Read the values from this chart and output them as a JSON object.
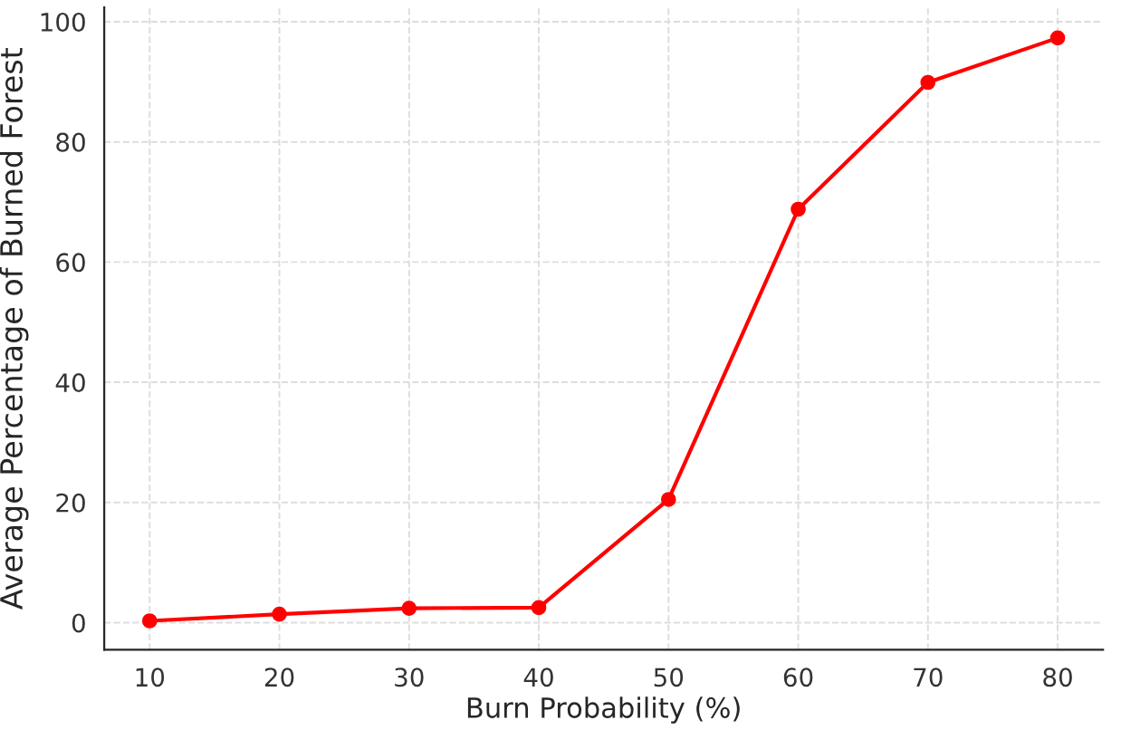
{
  "chart_data": {
    "type": "line",
    "xlabel": "Burn Probability (%)",
    "ylabel": "Average Percentage of Burned Forest",
    "x": [
      10,
      20,
      30,
      40,
      50,
      60,
      70,
      80
    ],
    "series": [
      {
        "color": "#ff0000",
        "values": [
          0.3,
          1.4,
          2.4,
          2.5,
          20.5,
          68.8,
          89.9,
          97.3
        ]
      }
    ],
    "xlim": [
      6.5,
      83.5
    ],
    "xticks": [
      10,
      20,
      30,
      40,
      50,
      60,
      70,
      80
    ],
    "ylim": [
      -4.5,
      102.4
    ],
    "yticks": [
      0,
      20,
      40,
      60,
      80,
      100
    ],
    "grid": true,
    "marker": "circle",
    "line_style": "solid"
  }
}
